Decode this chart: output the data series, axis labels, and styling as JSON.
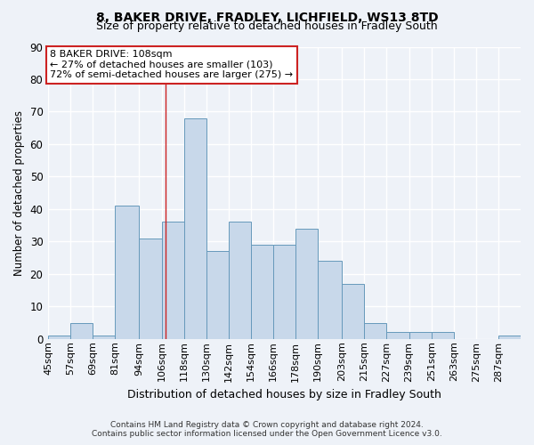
{
  "title1": "8, BAKER DRIVE, FRADLEY, LICHFIELD, WS13 8TD",
  "title2": "Size of property relative to detached houses in Fradley South",
  "xlabel": "Distribution of detached houses by size in Fradley South",
  "ylabel": "Number of detached properties",
  "footnote1": "Contains HM Land Registry data © Crown copyright and database right 2024.",
  "footnote2": "Contains public sector information licensed under the Open Government Licence v3.0.",
  "bin_labels": [
    "45sqm",
    "57sqm",
    "69sqm",
    "81sqm",
    "94sqm",
    "106sqm",
    "118sqm",
    "130sqm",
    "142sqm",
    "154sqm",
    "166sqm",
    "178sqm",
    "190sqm",
    "203sqm",
    "215sqm",
    "227sqm",
    "239sqm",
    "251sqm",
    "263sqm",
    "275sqm",
    "287sqm"
  ],
  "bin_edges": [
    45,
    57,
    69,
    81,
    94,
    106,
    118,
    130,
    142,
    154,
    166,
    178,
    190,
    203,
    215,
    227,
    239,
    251,
    263,
    275,
    287
  ],
  "counts": [
    1,
    5,
    1,
    41,
    31,
    36,
    68,
    27,
    36,
    29,
    29,
    34,
    24,
    17,
    5,
    2,
    2,
    2,
    0,
    0,
    1
  ],
  "bar_facecolor": "#c8d8ea",
  "bar_edgecolor": "#6699bb",
  "property_size": 108,
  "vline_color": "#cc2222",
  "annotation_line1": "8 BAKER DRIVE: 108sqm",
  "annotation_line2": "← 27% of detached houses are smaller (103)",
  "annotation_line3": "72% of semi-detached houses are larger (275) →",
  "annotation_box_color": "white",
  "annotation_box_edgecolor": "#cc2222",
  "ylim": [
    0,
    90
  ],
  "yticks": [
    0,
    10,
    20,
    30,
    40,
    50,
    60,
    70,
    80,
    90
  ],
  "bg_color": "#eef2f8",
  "grid_color": "white",
  "grid_lw": 1.0
}
